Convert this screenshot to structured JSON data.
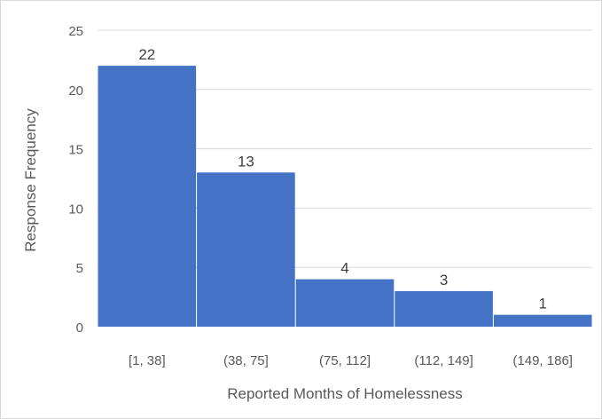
{
  "chart_data": {
    "type": "bar",
    "categories": [
      "[1, 38]",
      "(38, 75]",
      "(75, 112]",
      "(112, 149]",
      "(149, 186]"
    ],
    "values": [
      22,
      13,
      4,
      3,
      1
    ],
    "data_labels": [
      "22",
      "13",
      "4",
      "3",
      "1"
    ],
    "xlabel": "Reported Months of Homelessness",
    "ylabel": "Response Frequency",
    "ylim": [
      0,
      25
    ],
    "yticks": [
      "0",
      "5",
      "10",
      "15",
      "20",
      "25"
    ],
    "grid": true,
    "legend": "none",
    "bar_color": "#4472c4",
    "grid_color": "#d9d9d9"
  }
}
